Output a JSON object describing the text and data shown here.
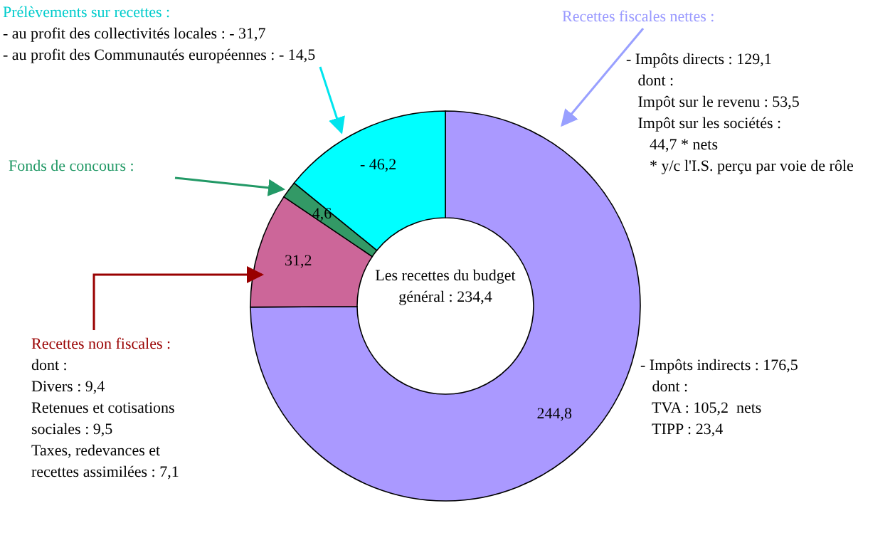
{
  "chart_data": {
    "type": "donut",
    "title": "Les recettes du budget général : 234,4",
    "categories": [
      null,
      null,
      null,
      null
    ],
    "values": [
      244.8,
      31.2,
      4.6,
      46.2
    ],
    "value_labels": [
      "244,8",
      "31,2",
      "4,6",
      null
    ],
    "colors": [
      "#aa99ff",
      "#cc6699",
      "#339966",
      "#00ffff"
    ],
    "annotations": [
      "Prélèvements sur recettes :",
      "- au profit des collectivités locales : - 31,7\n- au profit des Communautés européennes : - 14,5",
      "Fonds de concours :",
      "Recettes fiscales nettes :",
      "- Impôts directs : 129,1\n   dont :\n   Impôt sur le revenu : 53,5\n   Impôt sur les sociétés :\n      44,7 * nets\n      * y/c l'I.S. perçu par voie de rôle",
      "- Impôts indirects : 176,5\n   dont :\n   TVA : 105,2  nets\n   TIPP : 23,4",
      "Recettes non fiscales :",
      "dont :\nDivers : 9,4\nRetenues et cotisations\nsociales : 9,5\nTaxes, redevances et\nrecettes assimilées : 7,1",
      "- 46,2"
    ]
  }
}
